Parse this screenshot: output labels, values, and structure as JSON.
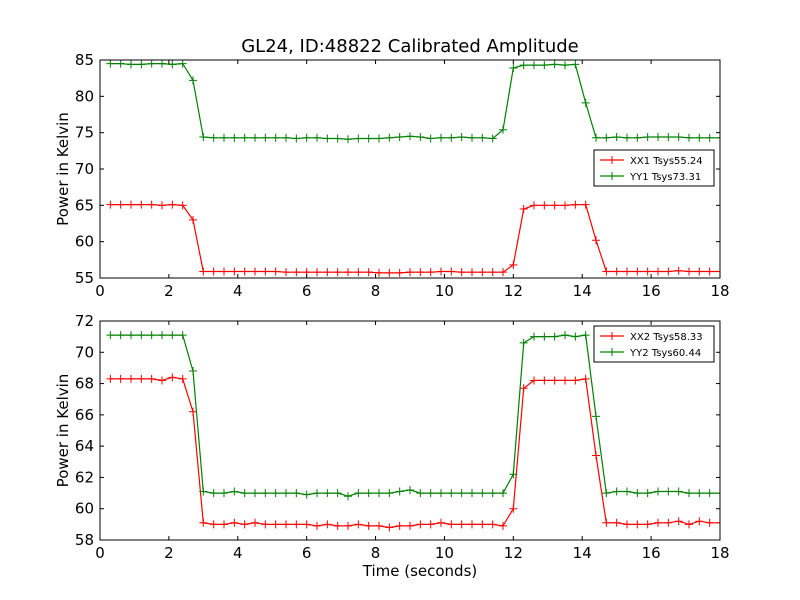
{
  "title": "GL24, ID:48822 Calibrated Amplitude",
  "chart_data": [
    {
      "type": "line",
      "xlabel": "",
      "ylabel": "Power in Kelvin",
      "xlim": [
        0,
        18
      ],
      "ylim": [
        55,
        85
      ],
      "xticks": [
        "0",
        "2",
        "4",
        "6",
        "8",
        "10",
        "12",
        "14",
        "16",
        "18"
      ],
      "yticks": [
        "55",
        "60",
        "65",
        "70",
        "75",
        "80",
        "85"
      ],
      "grid": false,
      "legend_position": "center-right",
      "series": [
        {
          "name": "XX1 Tsys55.24",
          "color": "#ff0000",
          "x": [
            0.3,
            0.6,
            0.9,
            1.2,
            1.5,
            1.8,
            2.1,
            2.4,
            2.7,
            3.0,
            3.3,
            3.6,
            3.9,
            4.2,
            4.5,
            4.8,
            5.1,
            5.4,
            5.7,
            6.0,
            6.3,
            6.6,
            6.9,
            7.2,
            7.5,
            7.8,
            8.1,
            8.4,
            8.7,
            9.0,
            9.3,
            9.6,
            9.9,
            10.2,
            10.5,
            10.8,
            11.1,
            11.4,
            11.7,
            12.0,
            12.3,
            12.6,
            12.9,
            13.2,
            13.5,
            13.8,
            14.1,
            14.4,
            14.7,
            15.0,
            15.3,
            15.6,
            15.9,
            16.2,
            16.5,
            16.8,
            17.1,
            17.4,
            17.7,
            18.0
          ],
          "y": [
            65.1,
            65.1,
            65.1,
            65.1,
            65.1,
            65.0,
            65.1,
            65.0,
            63.0,
            55.9,
            55.9,
            55.9,
            55.9,
            55.9,
            55.9,
            55.9,
            55.9,
            55.8,
            55.8,
            55.8,
            55.8,
            55.8,
            55.8,
            55.8,
            55.8,
            55.8,
            55.7,
            55.7,
            55.7,
            55.8,
            55.8,
            55.8,
            55.9,
            55.9,
            55.8,
            55.8,
            55.8,
            55.8,
            55.8,
            56.8,
            64.5,
            65.0,
            65.0,
            65.0,
            65.0,
            65.1,
            65.1,
            60.2,
            55.9,
            55.9,
            55.9,
            55.9,
            55.9,
            55.9,
            55.9,
            56.0,
            55.9,
            55.9,
            55.9,
            55.9
          ]
        },
        {
          "name": "YY1 Tsys73.31",
          "color": "#008000",
          "x": [
            0.3,
            0.6,
            0.9,
            1.2,
            1.5,
            1.8,
            2.1,
            2.4,
            2.7,
            3.0,
            3.3,
            3.6,
            3.9,
            4.2,
            4.5,
            4.8,
            5.1,
            5.4,
            5.7,
            6.0,
            6.3,
            6.6,
            6.9,
            7.2,
            7.5,
            7.8,
            8.1,
            8.4,
            8.7,
            9.0,
            9.3,
            9.6,
            9.9,
            10.2,
            10.5,
            10.8,
            11.1,
            11.4,
            11.7,
            12.0,
            12.3,
            12.6,
            12.9,
            13.2,
            13.5,
            13.8,
            14.1,
            14.4,
            14.7,
            15.0,
            15.3,
            15.6,
            15.9,
            16.2,
            16.5,
            16.8,
            17.1,
            17.4,
            17.7,
            18.0
          ],
          "y": [
            84.5,
            84.5,
            84.4,
            84.4,
            84.5,
            84.5,
            84.4,
            84.5,
            82.2,
            74.4,
            74.3,
            74.3,
            74.3,
            74.3,
            74.3,
            74.3,
            74.3,
            74.3,
            74.2,
            74.3,
            74.3,
            74.2,
            74.2,
            74.1,
            74.2,
            74.2,
            74.2,
            74.3,
            74.4,
            74.5,
            74.4,
            74.2,
            74.3,
            74.3,
            74.4,
            74.3,
            74.3,
            74.2,
            75.4,
            83.9,
            84.3,
            84.3,
            84.3,
            84.4,
            84.3,
            84.4,
            79.1,
            74.3,
            74.3,
            74.4,
            74.3,
            74.3,
            74.4,
            74.4,
            74.4,
            74.4,
            74.3,
            74.3,
            74.3,
            74.3
          ]
        }
      ]
    },
    {
      "type": "line",
      "xlabel": "Time (seconds)",
      "ylabel": "Power in Kelvin",
      "xlim": [
        0,
        18
      ],
      "ylim": [
        58,
        72
      ],
      "xticks": [
        "0",
        "2",
        "4",
        "6",
        "8",
        "10",
        "12",
        "14",
        "16",
        "18"
      ],
      "yticks": [
        "58",
        "60",
        "62",
        "64",
        "66",
        "68",
        "70",
        "72"
      ],
      "grid": false,
      "legend_position": "top-right",
      "series": [
        {
          "name": "XX2 Tsys58.33",
          "color": "#ff0000",
          "x": [
            0.3,
            0.6,
            0.9,
            1.2,
            1.5,
            1.8,
            2.1,
            2.4,
            2.7,
            3.0,
            3.3,
            3.6,
            3.9,
            4.2,
            4.5,
            4.8,
            5.1,
            5.4,
            5.7,
            6.0,
            6.3,
            6.6,
            6.9,
            7.2,
            7.5,
            7.8,
            8.1,
            8.4,
            8.7,
            9.0,
            9.3,
            9.6,
            9.9,
            10.2,
            10.5,
            10.8,
            11.1,
            11.4,
            11.7,
            12.0,
            12.3,
            12.6,
            12.9,
            13.2,
            13.5,
            13.8,
            14.1,
            14.4,
            14.7,
            15.0,
            15.3,
            15.6,
            15.9,
            16.2,
            16.5,
            16.8,
            17.1,
            17.4,
            17.7,
            18.0
          ],
          "y": [
            68.3,
            68.3,
            68.3,
            68.3,
            68.3,
            68.2,
            68.4,
            68.3,
            66.2,
            59.1,
            59.0,
            59.0,
            59.1,
            59.0,
            59.1,
            59.0,
            59.0,
            59.0,
            59.0,
            59.0,
            58.9,
            59.0,
            58.9,
            58.9,
            59.0,
            58.9,
            58.9,
            58.8,
            58.9,
            58.9,
            59.0,
            59.0,
            59.1,
            59.0,
            59.0,
            59.0,
            59.0,
            59.0,
            58.9,
            60.0,
            67.7,
            68.2,
            68.2,
            68.2,
            68.2,
            68.2,
            68.3,
            63.4,
            59.1,
            59.1,
            59.0,
            59.0,
            59.0,
            59.1,
            59.1,
            59.2,
            59.0,
            59.2,
            59.1,
            59.1
          ]
        },
        {
          "name": "YY2 Tsys60.44",
          "color": "#008000",
          "x": [
            0.3,
            0.6,
            0.9,
            1.2,
            1.5,
            1.8,
            2.1,
            2.4,
            2.7,
            3.0,
            3.3,
            3.6,
            3.9,
            4.2,
            4.5,
            4.8,
            5.1,
            5.4,
            5.7,
            6.0,
            6.3,
            6.6,
            6.9,
            7.2,
            7.5,
            7.8,
            8.1,
            8.4,
            8.7,
            9.0,
            9.3,
            9.6,
            9.9,
            10.2,
            10.5,
            10.8,
            11.1,
            11.4,
            11.7,
            12.0,
            12.3,
            12.6,
            12.9,
            13.2,
            13.5,
            13.8,
            14.1,
            14.4,
            14.7,
            15.0,
            15.3,
            15.6,
            15.9,
            16.2,
            16.5,
            16.8,
            17.1,
            17.4,
            17.7,
            18.0
          ],
          "y": [
            71.1,
            71.1,
            71.1,
            71.1,
            71.1,
            71.1,
            71.1,
            71.1,
            68.8,
            61.1,
            61.0,
            61.0,
            61.1,
            61.0,
            61.0,
            61.0,
            61.0,
            61.0,
            61.0,
            60.9,
            61.0,
            61.0,
            61.0,
            60.8,
            61.0,
            61.0,
            61.0,
            61.0,
            61.1,
            61.2,
            61.0,
            61.0,
            61.0,
            61.0,
            61.0,
            61.0,
            61.0,
            61.0,
            61.0,
            62.2,
            70.6,
            71.0,
            71.0,
            71.0,
            71.1,
            71.0,
            71.1,
            65.9,
            61.0,
            61.1,
            61.1,
            61.0,
            61.0,
            61.1,
            61.1,
            61.1,
            61.0,
            61.0,
            61.0,
            61.0
          ]
        }
      ]
    }
  ]
}
